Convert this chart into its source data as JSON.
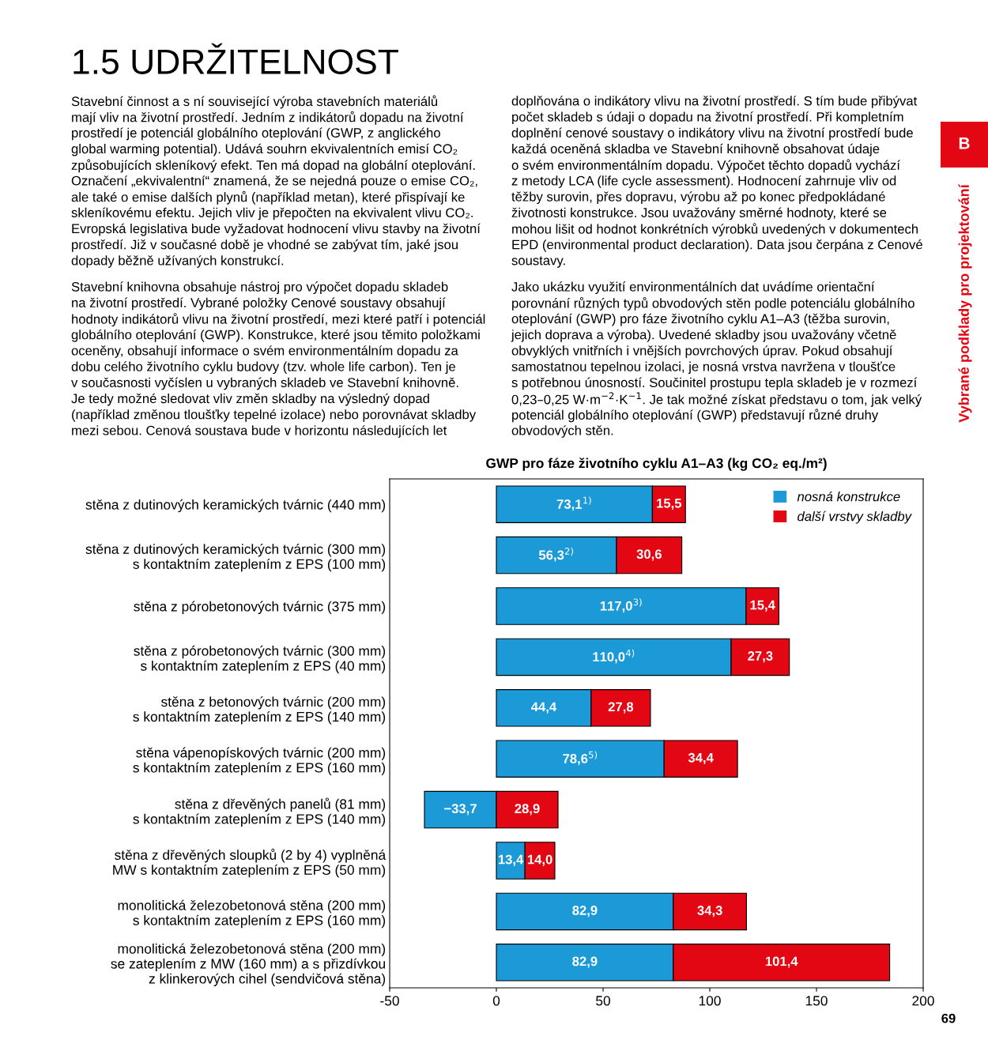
{
  "chart_data": {
    "type": "bar",
    "orientation": "horizontal",
    "stacked": true,
    "title": "GWP pro fáze životního cyklu A1–A3 (kg CO₂ eq./m²)",
    "categories": [
      "stěna z dutinových keramických tvárnic (440 mm)",
      "stěna z dutinových keramických tvárnic (300 mm)\ns kontaktním zateplením z EPS (100 mm)",
      "stěna z pórobetonových tvárnic (375 mm)",
      "stěna z pórobetonových tvárnic (300 mm)\ns kontaktním zateplením z EPS (40 mm)",
      "stěna z betonových tvárnic (200 mm)\ns kontaktním zateplením z EPS (140 mm)",
      "stěna vápenopískových tvárnic (200 mm)\ns kontaktním zateplením z EPS (160 mm)",
      "stěna z dřevěných panelů (81 mm)\ns kontaktním zateplením z EPS (140 mm)",
      "stěna z dřevěných sloupků (2 by 4) vyplněná\nMW s kontaktním zateplením z EPS (50 mm)",
      "monolitická železobetonová stěna (200 mm)\ns kontaktním zateplením z EPS (160 mm)",
      "monolitická železobetonová stěna (200 mm)\nse zateplením z MW (160 mm) a s přizdívkou\nz klinkerových cihel (sendvičová stěna)"
    ],
    "series": [
      {
        "name": "nosná konstrukce",
        "color": "#1b9ad7",
        "values": [
          73.1,
          56.3,
          117.0,
          110.0,
          44.4,
          78.6,
          -33.7,
          13.4,
          82.9,
          82.9
        ],
        "value_labels": [
          "73,1$^{1)}$",
          "56,3$^{2)}$",
          "117,0$^{3)}$",
          "110,0$^{4)}$",
          "44,4",
          "78,6$^{5)}$",
          "−33,7",
          "13,4",
          "82,9",
          "82,9"
        ]
      },
      {
        "name": "další vrstvy skladby",
        "color": "#e30613",
        "values": [
          15.5,
          30.6,
          15.4,
          27.3,
          27.8,
          34.4,
          28.9,
          14.0,
          34.3,
          101.4
        ],
        "value_labels": [
          "15,5",
          "30,6",
          "15,4",
          "27,3",
          "27,8",
          "34,4",
          "28,9",
          "14,0",
          "34,3",
          "101,4"
        ]
      }
    ],
    "xlim": [
      -50,
      200
    ],
    "xticks": [
      -50,
      0,
      50,
      100,
      150,
      200
    ],
    "grid": false,
    "legend": "top right",
    "annotations": [
      "1.5 UDRŽITELNOST",
      "Stavební činnost a s ní související výroba stavebních materiálů",
      "mají vliv na životní prostředí. Jedním z indikátorů dopadu na životní",
      "prostředí je potenciál globálního oteplování (GWP, z anglického",
      "global warming potential). Udává souhrn ekvivalentních emisí CO₂",
      "způsobujících skleníkový efekt. Ten má dopad na globální oteplování.",
      "Označení „ekvivalentní“ znamená, že se nejedná pouze o emise CO₂,",
      "ale také o emise dalších plynů (například metan), které přispívají ke",
      "skleníkovému efektu. Jejich vliv je přepočten na ekvivalent vlivu CO₂.",
      "Evropská legislativa bude vyžadovat hodnocení vlivu stavby na životní",
      "prostředí. Již v současné době je vhodné se zabývat tím, jaké jsou",
      "dopady běžně užívaných konstrukcí.",
      "Stavební knihovna obsahuje nástroj pro výpočet dopadu skladeb",
      "na životní prostředí. Vybrané položky Cenové soustavy obsahují",
      "hodnoty indikátorů vlivu na životní prostředí, mezi které patří i potenciál",
      "globálního oteplování (GWP). Konstrukce, které jsou těmito položkami",
      "oceněny, obsahují informace o svém environmentálním dopadu za",
      "dobu celého životního cyklu budovy (tzv. whole life carbon). Ten je",
      "v současnosti vyčíslen u vybraných skladeb ve Stavební knihovně.",
      "Je tedy možné sledovat vliv změn skladby na výsledný dopad",
      "(například změnou tloušťky tepelné izolace) nebo porovnávat skladby",
      "mezi sebou. Cenová soustava bude v horizontu následujících let",
      "doplňována o indikátory vlivu na životní prostředí. S tím bude přibývat",
      "počet skladeb s údaji o dopadu na životní prostředí. Při kompletním",
      "doplnění cenové soustavy o indikátory vlivu na životní prostředí bude",
      "každá oceněná skladba ve Stavební knihovně obsahovat údaje",
      "o svém environmentálním dopadu. Výpočet těchto dopadů vychází",
      "z metody LCA (life cycle assessment). Hodnocení zahrnuje vliv od",
      "těžby surovin, přes dopravu, výrobu až po konec předpokládané",
      "životnosti konstrukce. Jsou uvažovány směrné hodnoty, které se",
      "mohou lišit od hodnot konkrétních výrobků uvedených v dokumentech",
      "EPD (environmental product declaration). Data jsou čerpána z Cenové",
      "soustavy.",
      "Jako ukázku využití environmentálních dat uvádíme orientační",
      "porovnání různých typů obvodových stěn podle potenciálu globálního",
      "oteplování (GWP) pro fáze životního cyklu A1–A3 (těžba surovin,",
      "jejich doprava a výroba). Uvedené skladby jsou uvažovány včetně",
      "obvyklých vnitřních i vnějších povrchových úprav. Pokud obsahují",
      "samostatnou tepelnou izolaci, je nosná vrstva navržena v tloušťce",
      "s potřebnou únosností. Součinitel prostupu tepla skladeb je v rozmezí",
      "0,23–0,25 W·m$^{−2}$·K$^{−1}$. Je tak možné získat představu o tom, jak velký",
      "potenciál globálního oteplování (GWP) představují různé druhy",
      "obvodových stěn.",
      "B",
      "Vybrané podklady pro projektování",
      "69"
    ]
  }
}
